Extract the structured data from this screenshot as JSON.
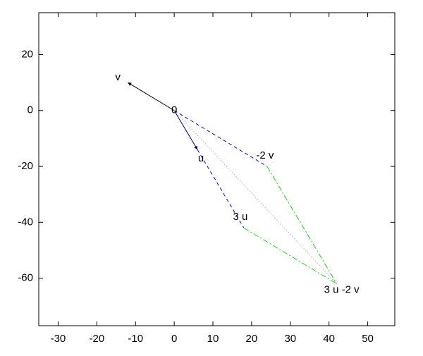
{
  "chart_data": {
    "type": "vector",
    "xlim": [
      -35,
      57
    ],
    "ylim": [
      -77,
      35
    ],
    "xticks": [
      -30,
      -20,
      -10,
      0,
      10,
      20,
      30,
      40,
      50
    ],
    "yticks": [
      -60,
      -40,
      -20,
      0,
      20
    ],
    "series": [
      {
        "color": "#000000",
        "dash": "solid",
        "arrow": true,
        "x": [
          0,
          -12
        ],
        "y": [
          0,
          10
        ]
      },
      {
        "color": "#000080",
        "dash": "solid",
        "arrow": true,
        "x": [
          0,
          6
        ],
        "y": [
          0,
          -14
        ]
      },
      {
        "color": "#0000ff",
        "dash": "dashed",
        "arrow": false,
        "x": [
          0,
          24
        ],
        "y": [
          0,
          -20
        ]
      },
      {
        "color": "#0000ff",
        "dash": "dashed",
        "arrow": false,
        "x": [
          6,
          18
        ],
        "y": [
          -14,
          -42
        ]
      },
      {
        "color": "#00e000",
        "dash": "dashdot",
        "arrow": false,
        "x": [
          24,
          42
        ],
        "y": [
          -20,
          -62
        ]
      },
      {
        "color": "#00e000",
        "dash": "dashdot",
        "arrow": false,
        "x": [
          18,
          42
        ],
        "y": [
          -42,
          -62
        ]
      },
      {
        "color": "#d0a0a0",
        "dash": "dotted",
        "arrow": false,
        "x": [
          0,
          42
        ],
        "y": [
          0,
          -62
        ]
      }
    ],
    "labels": [
      {
        "text": "v",
        "x": -12,
        "y": 10
      },
      {
        "text": "0",
        "x": 0,
        "y": 0
      },
      {
        "text": "u",
        "x": 6,
        "y": -14
      },
      {
        "text": "-2 v",
        "x": 24,
        "y": -20
      },
      {
        "text": "3 u",
        "x": 18,
        "y": -42
      },
      {
        "text": "3 u -2 v",
        "x": 42,
        "y": -62
      }
    ]
  }
}
